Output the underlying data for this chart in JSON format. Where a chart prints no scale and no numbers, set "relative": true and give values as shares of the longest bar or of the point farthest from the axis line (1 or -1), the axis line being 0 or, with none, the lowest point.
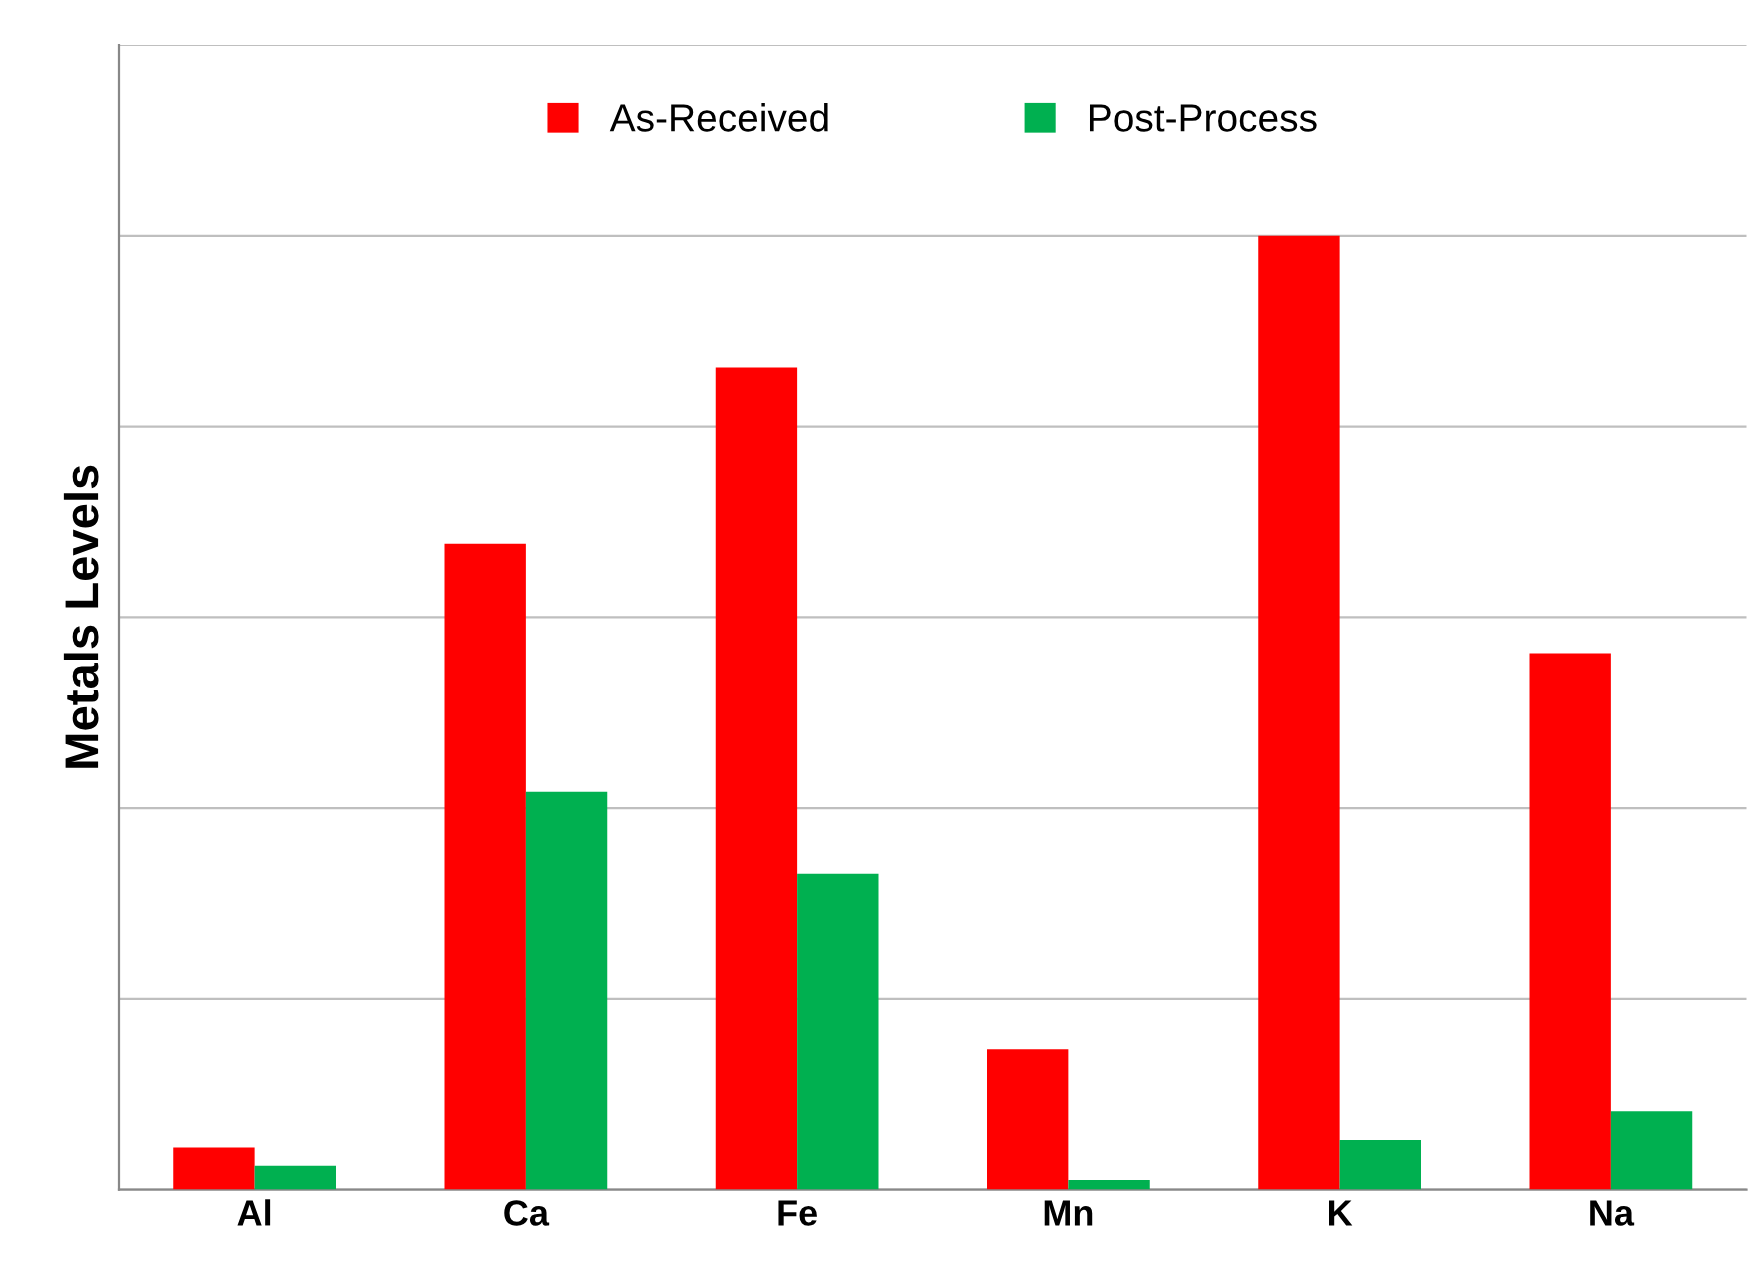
{
  "chart_data": {
    "type": "bar",
    "ylabel": "Metals Levels",
    "relative": true,
    "grid": "y",
    "legend": "top",
    "categories": [
      "Al",
      "Ca",
      "Fe",
      "Mn",
      "K",
      "Na"
    ],
    "series": [
      {
        "name": "As-Received",
        "color": "#ff0000",
        "values": [
          0.044,
          0.677,
          0.862,
          0.147,
          1,
          0.562
        ]
      },
      {
        "name": "Post-Process",
        "color": "#00b050",
        "values": [
          0.025,
          0.417,
          0.331,
          0.01,
          0.052,
          0.082
        ]
      }
    ]
  }
}
